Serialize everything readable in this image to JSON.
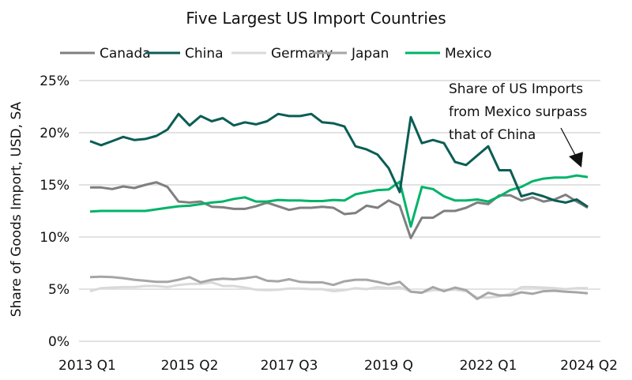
{
  "chart_data": {
    "type": "line",
    "title": "Five Largest US Import Countries",
    "xlabel": "",
    "ylabel": "Share of Goods Import, USD, SA",
    "ylim": [
      0,
      25
    ],
    "y_ticks": [
      "0%",
      "5%",
      "10%",
      "15%",
      "20%",
      "25%"
    ],
    "y_tick_values": [
      0,
      5,
      10,
      15,
      20,
      25
    ],
    "grid": "horizontal",
    "legend": "top",
    "x": [
      "2013 Q1",
      "2013 Q2",
      "2013 Q3",
      "2013 Q4",
      "2014 Q1",
      "2014 Q2",
      "2014 Q3",
      "2014 Q4",
      "2015 Q1",
      "2015 Q2",
      "2015 Q3",
      "2015 Q4",
      "2016 Q1",
      "2016 Q2",
      "2016 Q3",
      "2016 Q4",
      "2017 Q1",
      "2017 Q2",
      "2017 Q3",
      "2017 Q4",
      "2018 Q1",
      "2018 Q2",
      "2018 Q3",
      "2018 Q4",
      "2019 Q1",
      "2019 Q2",
      "2019 Q3",
      "2019 Q4",
      "2020 Q1",
      "2020 Q2",
      "2020 Q3",
      "2020 Q4",
      "2021 Q1",
      "2021 Q2",
      "2021 Q3",
      "2021 Q4",
      "2022 Q1",
      "2022 Q2",
      "2022 Q3",
      "2022 Q4",
      "2023 Q1",
      "2023 Q2",
      "2023 Q3",
      "2023 Q4",
      "2024 Q1",
      "2024 Q2"
    ],
    "x_tick_labels": [
      {
        "index": 0,
        "label": "2013 Q1"
      },
      {
        "index": 9,
        "label": "2015 Q2"
      },
      {
        "index": 18,
        "label": "2017 Q3"
      },
      {
        "index": 27,
        "label": "2019 Q"
      },
      {
        "index": 36,
        "label": "2022 Q1"
      },
      {
        "index": 45,
        "label": "2024 Q2"
      }
    ],
    "series": [
      {
        "name": "Canada",
        "color": "#7f7f7f",
        "values": [
          14.75,
          14.75,
          14.6,
          14.85,
          14.7,
          15.0,
          15.25,
          14.8,
          13.4,
          13.3,
          13.4,
          12.9,
          12.85,
          12.7,
          12.7,
          12.95,
          13.3,
          12.95,
          12.6,
          12.8,
          12.8,
          12.9,
          12.8,
          12.2,
          12.3,
          13.0,
          12.8,
          13.5,
          13.0,
          9.9,
          11.85,
          11.85,
          12.5,
          12.5,
          12.8,
          13.3,
          13.15,
          14.0,
          14.0,
          13.5,
          13.8,
          13.4,
          13.6,
          14.05,
          13.4,
          12.8
        ]
      },
      {
        "name": "China",
        "color": "#0b5d55",
        "values": [
          19.2,
          18.8,
          19.2,
          19.6,
          19.3,
          19.4,
          19.7,
          20.3,
          21.8,
          20.7,
          21.6,
          21.1,
          21.4,
          20.7,
          21.0,
          20.8,
          21.1,
          21.8,
          21.6,
          21.6,
          21.8,
          21.0,
          20.9,
          20.6,
          18.7,
          18.4,
          17.9,
          16.6,
          14.3,
          21.5,
          19.0,
          19.3,
          19.0,
          17.2,
          16.9,
          17.8,
          18.7,
          16.4,
          16.4,
          13.9,
          14.2,
          13.9,
          13.5,
          13.3,
          13.6,
          12.9
        ]
      },
      {
        "name": "Germany",
        "color": "#d9d9d9",
        "values": [
          4.8,
          5.1,
          5.15,
          5.2,
          5.2,
          5.3,
          5.3,
          5.2,
          5.4,
          5.5,
          5.5,
          5.65,
          5.3,
          5.3,
          5.15,
          4.95,
          4.9,
          4.95,
          5.05,
          5.05,
          5.0,
          5.0,
          4.8,
          4.9,
          5.1,
          5.0,
          5.2,
          5.1,
          5.2,
          4.75,
          4.7,
          4.9,
          4.9,
          4.95,
          4.8,
          4.2,
          4.2,
          4.3,
          4.55,
          5.2,
          5.2,
          5.15,
          5.1,
          5.0,
          5.1,
          5.1
        ]
      },
      {
        "name": "Japan",
        "color": "#a6a6a6",
        "values": [
          6.15,
          6.2,
          6.15,
          6.05,
          5.9,
          5.8,
          5.7,
          5.7,
          5.9,
          6.15,
          5.65,
          5.9,
          6.0,
          5.95,
          6.05,
          6.2,
          5.8,
          5.75,
          5.95,
          5.7,
          5.65,
          5.65,
          5.4,
          5.75,
          5.9,
          5.9,
          5.7,
          5.45,
          5.7,
          4.75,
          4.65,
          5.2,
          4.8,
          5.15,
          4.9,
          4.05,
          4.65,
          4.4,
          4.4,
          4.7,
          4.55,
          4.8,
          4.85,
          4.75,
          4.7,
          4.6
        ]
      },
      {
        "name": "Mexico",
        "color": "#00b368",
        "values": [
          12.45,
          12.5,
          12.5,
          12.5,
          12.5,
          12.5,
          12.65,
          12.8,
          12.95,
          13.0,
          13.15,
          13.3,
          13.4,
          13.65,
          13.8,
          13.4,
          13.4,
          13.55,
          13.5,
          13.5,
          13.45,
          13.45,
          13.55,
          13.5,
          14.1,
          14.3,
          14.5,
          14.55,
          15.3,
          11.0,
          14.8,
          14.6,
          13.9,
          13.5,
          13.5,
          13.6,
          13.4,
          13.9,
          14.5,
          14.8,
          15.35,
          15.6,
          15.7,
          15.7,
          15.9,
          15.75
        ]
      }
    ],
    "annotation": {
      "lines": [
        "Share of US Imports",
        "from Mexico surpass",
        "that of China"
      ]
    }
  }
}
